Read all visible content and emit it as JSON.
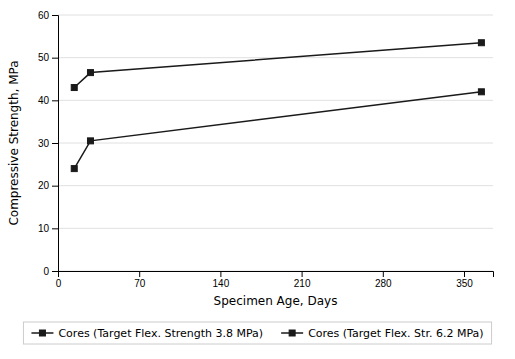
{
  "chart_data": {
    "type": "line",
    "xlabel": "Specimen Age, Days",
    "ylabel": "Compressive Strength, MPa",
    "x": [
      14,
      28,
      365
    ],
    "series": [
      {
        "name": "Cores (Target Flex. Strength 3.8 MPa)",
        "color": "#1a1a1a",
        "marker": "square",
        "values": [
          24.0,
          30.5,
          42.0
        ]
      },
      {
        "name": "Cores (Target Flex. Str. 6.2 MPa)",
        "color": "#1a1a1a",
        "marker": "square",
        "values": [
          43.0,
          46.5,
          53.5
        ]
      }
    ],
    "xlim": [
      0,
      375
    ],
    "ylim": [
      0,
      60
    ],
    "xticks": [
      0,
      70,
      140,
      210,
      280,
      350
    ],
    "yticks": [
      0,
      10,
      20,
      30,
      40,
      50,
      60
    ],
    "grid": "y",
    "legend": "bottom"
  }
}
